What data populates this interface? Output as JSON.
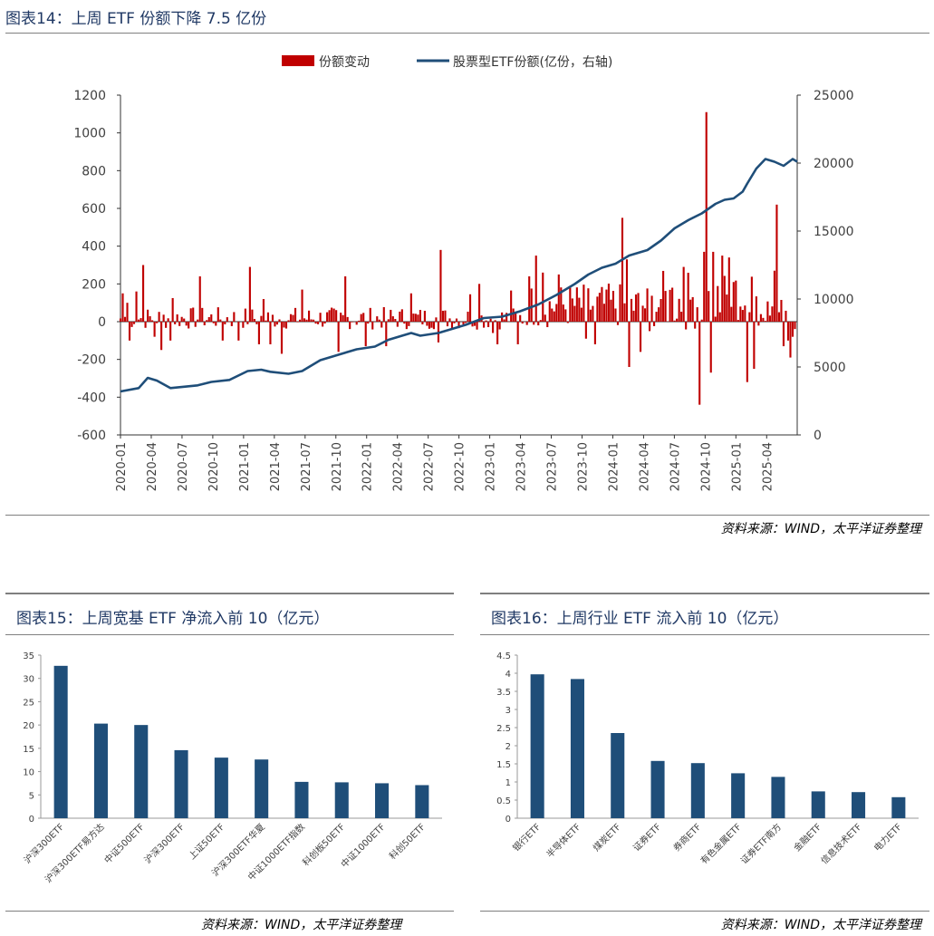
{
  "charts": {
    "c1": {
      "title": "图表14：上周 ETF 份额下降 7.5 亿份",
      "source": "资料来源：WIND，太平洋证券整理",
      "legend": {
        "bar_label": "份额变动",
        "line_label": "股票型ETF份额(亿份，右轴)"
      }
    },
    "c2": {
      "title": "图表15：上周宽基 ETF 净流入前 10（亿元）",
      "source": "资料来源：WIND，太平洋证券整理"
    },
    "c3": {
      "title": "图表16：上周行业 ETF 流入前 10（亿元）",
      "source": "资料来源：WIND，太平洋证券整理"
    }
  },
  "chart_data": [
    {
      "type": "bar+line",
      "title": "图表14：上周 ETF 份额下降 7.5 亿份",
      "legend_placement": "top-center",
      "grid": false,
      "x_ticks": [
        "2020-01",
        "2020-04",
        "2020-07",
        "2020-10",
        "2021-01",
        "2021-04",
        "2021-07",
        "2021-10",
        "2022-01",
        "2022-04",
        "2022-07",
        "2022-10",
        "2023-01",
        "2023-04",
        "2023-07",
        "2023-10",
        "2024-01",
        "2024-04",
        "2024-07",
        "2024-10",
        "2025-01",
        "2025-04"
      ],
      "y_left_ticks": [
        "-600",
        "-400",
        "-200",
        "0",
        "200",
        "400",
        "600",
        "800",
        "1000",
        "1200"
      ],
      "y_left_lim": [
        -600,
        1200
      ],
      "y_right_ticks": [
        "0",
        "5000",
        "10000",
        "15000",
        "20000",
        "25000"
      ],
      "y_right_lim": [
        0,
        25000
      ],
      "weeks_total": 280,
      "series": [
        {
          "name": "份额变动",
          "axis": "left",
          "color": "#c00000",
          "spikes": [
            {
              "week": 1,
              "value": 150
            },
            {
              "week": 3,
              "value": 100
            },
            {
              "week": 4,
              "value": -100
            },
            {
              "week": 7,
              "value": 160
            },
            {
              "week": 10,
              "value": 300
            },
            {
              "week": 15,
              "value": -80
            },
            {
              "week": 18,
              "value": -150
            },
            {
              "week": 22,
              "value": -100
            },
            {
              "week": 23,
              "value": 125
            },
            {
              "week": 35,
              "value": 240
            },
            {
              "week": 45,
              "value": -100
            },
            {
              "week": 52,
              "value": -100
            },
            {
              "week": 57,
              "value": 290
            },
            {
              "week": 61,
              "value": -120
            },
            {
              "week": 63,
              "value": 120
            },
            {
              "week": 66,
              "value": -120
            },
            {
              "week": 71,
              "value": -170
            },
            {
              "week": 80,
              "value": 170
            },
            {
              "week": 96,
              "value": -160
            },
            {
              "week": 99,
              "value": 240
            },
            {
              "week": 108,
              "value": -130
            },
            {
              "week": 117,
              "value": -130
            },
            {
              "week": 128,
              "value": 150
            },
            {
              "week": 140,
              "value": -110
            },
            {
              "week": 141,
              "value": 380
            },
            {
              "week": 154,
              "value": 145
            },
            {
              "week": 158,
              "value": 200
            },
            {
              "week": 164,
              "value": -60
            },
            {
              "week": 166,
              "value": -120
            },
            {
              "week": 172,
              "value": 165
            },
            {
              "week": 175,
              "value": -120
            },
            {
              "week": 180,
              "value": 240
            },
            {
              "week": 183,
              "value": 350
            },
            {
              "week": 186,
              "value": 260
            },
            {
              "week": 193,
              "value": 250
            },
            {
              "week": 205,
              "value": -90
            },
            {
              "week": 209,
              "value": -120
            },
            {
              "week": 214,
              "value": 170
            },
            {
              "week": 221,
              "value": 550
            },
            {
              "week": 223,
              "value": 330
            },
            {
              "week": 224,
              "value": -240
            },
            {
              "week": 229,
              "value": -160
            },
            {
              "week": 233,
              "value": -50
            },
            {
              "week": 238,
              "value": 120
            },
            {
              "week": 243,
              "value": 180
            },
            {
              "week": 248,
              "value": 290
            },
            {
              "week": 252,
              "value": 130
            },
            {
              "week": 255,
              "value": -440
            },
            {
              "week": 257,
              "value": 370
            },
            {
              "week": 258,
              "value": 1110
            },
            {
              "week": 260,
              "value": -270
            },
            {
              "week": 261,
              "value": 370
            },
            {
              "week": 265,
              "value": 350
            },
            {
              "week": 268,
              "value": 340
            },
            {
              "week": 270,
              "value": 210
            },
            {
              "week": 273,
              "value": 80
            },
            {
              "week": 276,
              "value": -320
            },
            {
              "week": 277,
              "value": 50
            },
            {
              "week": 279,
              "value": -250
            },
            {
              "week": 282,
              "value": 40
            },
            {
              "week": 283,
              "value": 20
            },
            {
              "week": 288,
              "value": 270
            },
            {
              "week": 289,
              "value": 620
            },
            {
              "week": 290,
              "value": 50
            },
            {
              "week": 292,
              "value": -130
            },
            {
              "week": 294,
              "value": -100
            },
            {
              "week": 295,
              "value": -190
            },
            {
              "week": 296,
              "value": -80
            }
          ]
        },
        {
          "name": "股票型ETF份额(亿份，右轴)",
          "axis": "right",
          "color": "#1f4e79",
          "points": [
            [
              0,
              3200
            ],
            [
              8,
              3450
            ],
            [
              12,
              4200
            ],
            [
              16,
              4000
            ],
            [
              22,
              3450
            ],
            [
              28,
              3550
            ],
            [
              34,
              3650
            ],
            [
              40,
              3900
            ],
            [
              48,
              4050
            ],
            [
              56,
              4700
            ],
            [
              62,
              4800
            ],
            [
              66,
              4650
            ],
            [
              74,
              4500
            ],
            [
              80,
              4700
            ],
            [
              88,
              5500
            ],
            [
              96,
              5900
            ],
            [
              104,
              6300
            ],
            [
              112,
              6500
            ],
            [
              118,
              7000
            ],
            [
              124,
              7300
            ],
            [
              128,
              7500
            ],
            [
              132,
              7300
            ],
            [
              140,
              7500
            ],
            [
              146,
              7800
            ],
            [
              152,
              8100
            ],
            [
              160,
              8600
            ],
            [
              168,
              8700
            ],
            [
              176,
              9100
            ],
            [
              184,
              9600
            ],
            [
              192,
              10300
            ],
            [
              200,
              11100
            ],
            [
              206,
              11800
            ],
            [
              212,
              12300
            ],
            [
              218,
              12600
            ],
            [
              224,
              13200
            ],
            [
              232,
              13600
            ],
            [
              238,
              14300
            ],
            [
              244,
              15200
            ],
            [
              250,
              15800
            ],
            [
              256,
              16300
            ],
            [
              262,
              17000
            ],
            [
              266,
              17300
            ],
            [
              270,
              17400
            ],
            [
              274,
              17900
            ],
            [
              276,
              18500
            ],
            [
              280,
              19600
            ],
            [
              284,
              20300
            ],
            [
              288,
              20100
            ],
            [
              292,
              19800
            ],
            [
              296,
              20300
            ],
            [
              298,
              20100
            ]
          ]
        }
      ]
    },
    {
      "type": "bar",
      "title": "图表15：上周宽基 ETF 净流入前 10（亿元）",
      "categories": [
        "沪深300ETF",
        "沪深300ETF易方达",
        "中证500ETF",
        "沪深300ETF",
        "上证50ETF",
        "沪深300ETF华夏",
        "中证1000ETF指数",
        "科创板50ETF",
        "中证1000ETF",
        "科创50ETF"
      ],
      "values": [
        32.7,
        20.3,
        20.0,
        14.6,
        13.0,
        12.6,
        7.8,
        7.7,
        7.5,
        7.1
      ],
      "ylim": [
        0,
        35
      ],
      "y_ticks": [
        "0",
        "5",
        "10",
        "15",
        "20",
        "25",
        "30",
        "35"
      ],
      "color": "#1f4e79",
      "grid": false
    },
    {
      "type": "bar",
      "title": "图表16：上周行业 ETF 流入前 10（亿元）",
      "categories": [
        "银行ETF",
        "半导体ETF",
        "煤炭ETF",
        "证券ETF",
        "券商ETF",
        "有色金属ETF",
        "证券ETF南方",
        "金融ETF",
        "信息技术ETF",
        "电力ETF"
      ],
      "values": [
        3.97,
        3.84,
        2.35,
        1.58,
        1.52,
        1.24,
        1.14,
        0.74,
        0.72,
        0.58
      ],
      "ylim": [
        0,
        4.5
      ],
      "y_ticks": [
        "0",
        "0.5",
        "1",
        "1.5",
        "2",
        "2.5",
        "3",
        "3.5",
        "4",
        "4.5"
      ],
      "color": "#1f4e79",
      "grid": false
    }
  ]
}
